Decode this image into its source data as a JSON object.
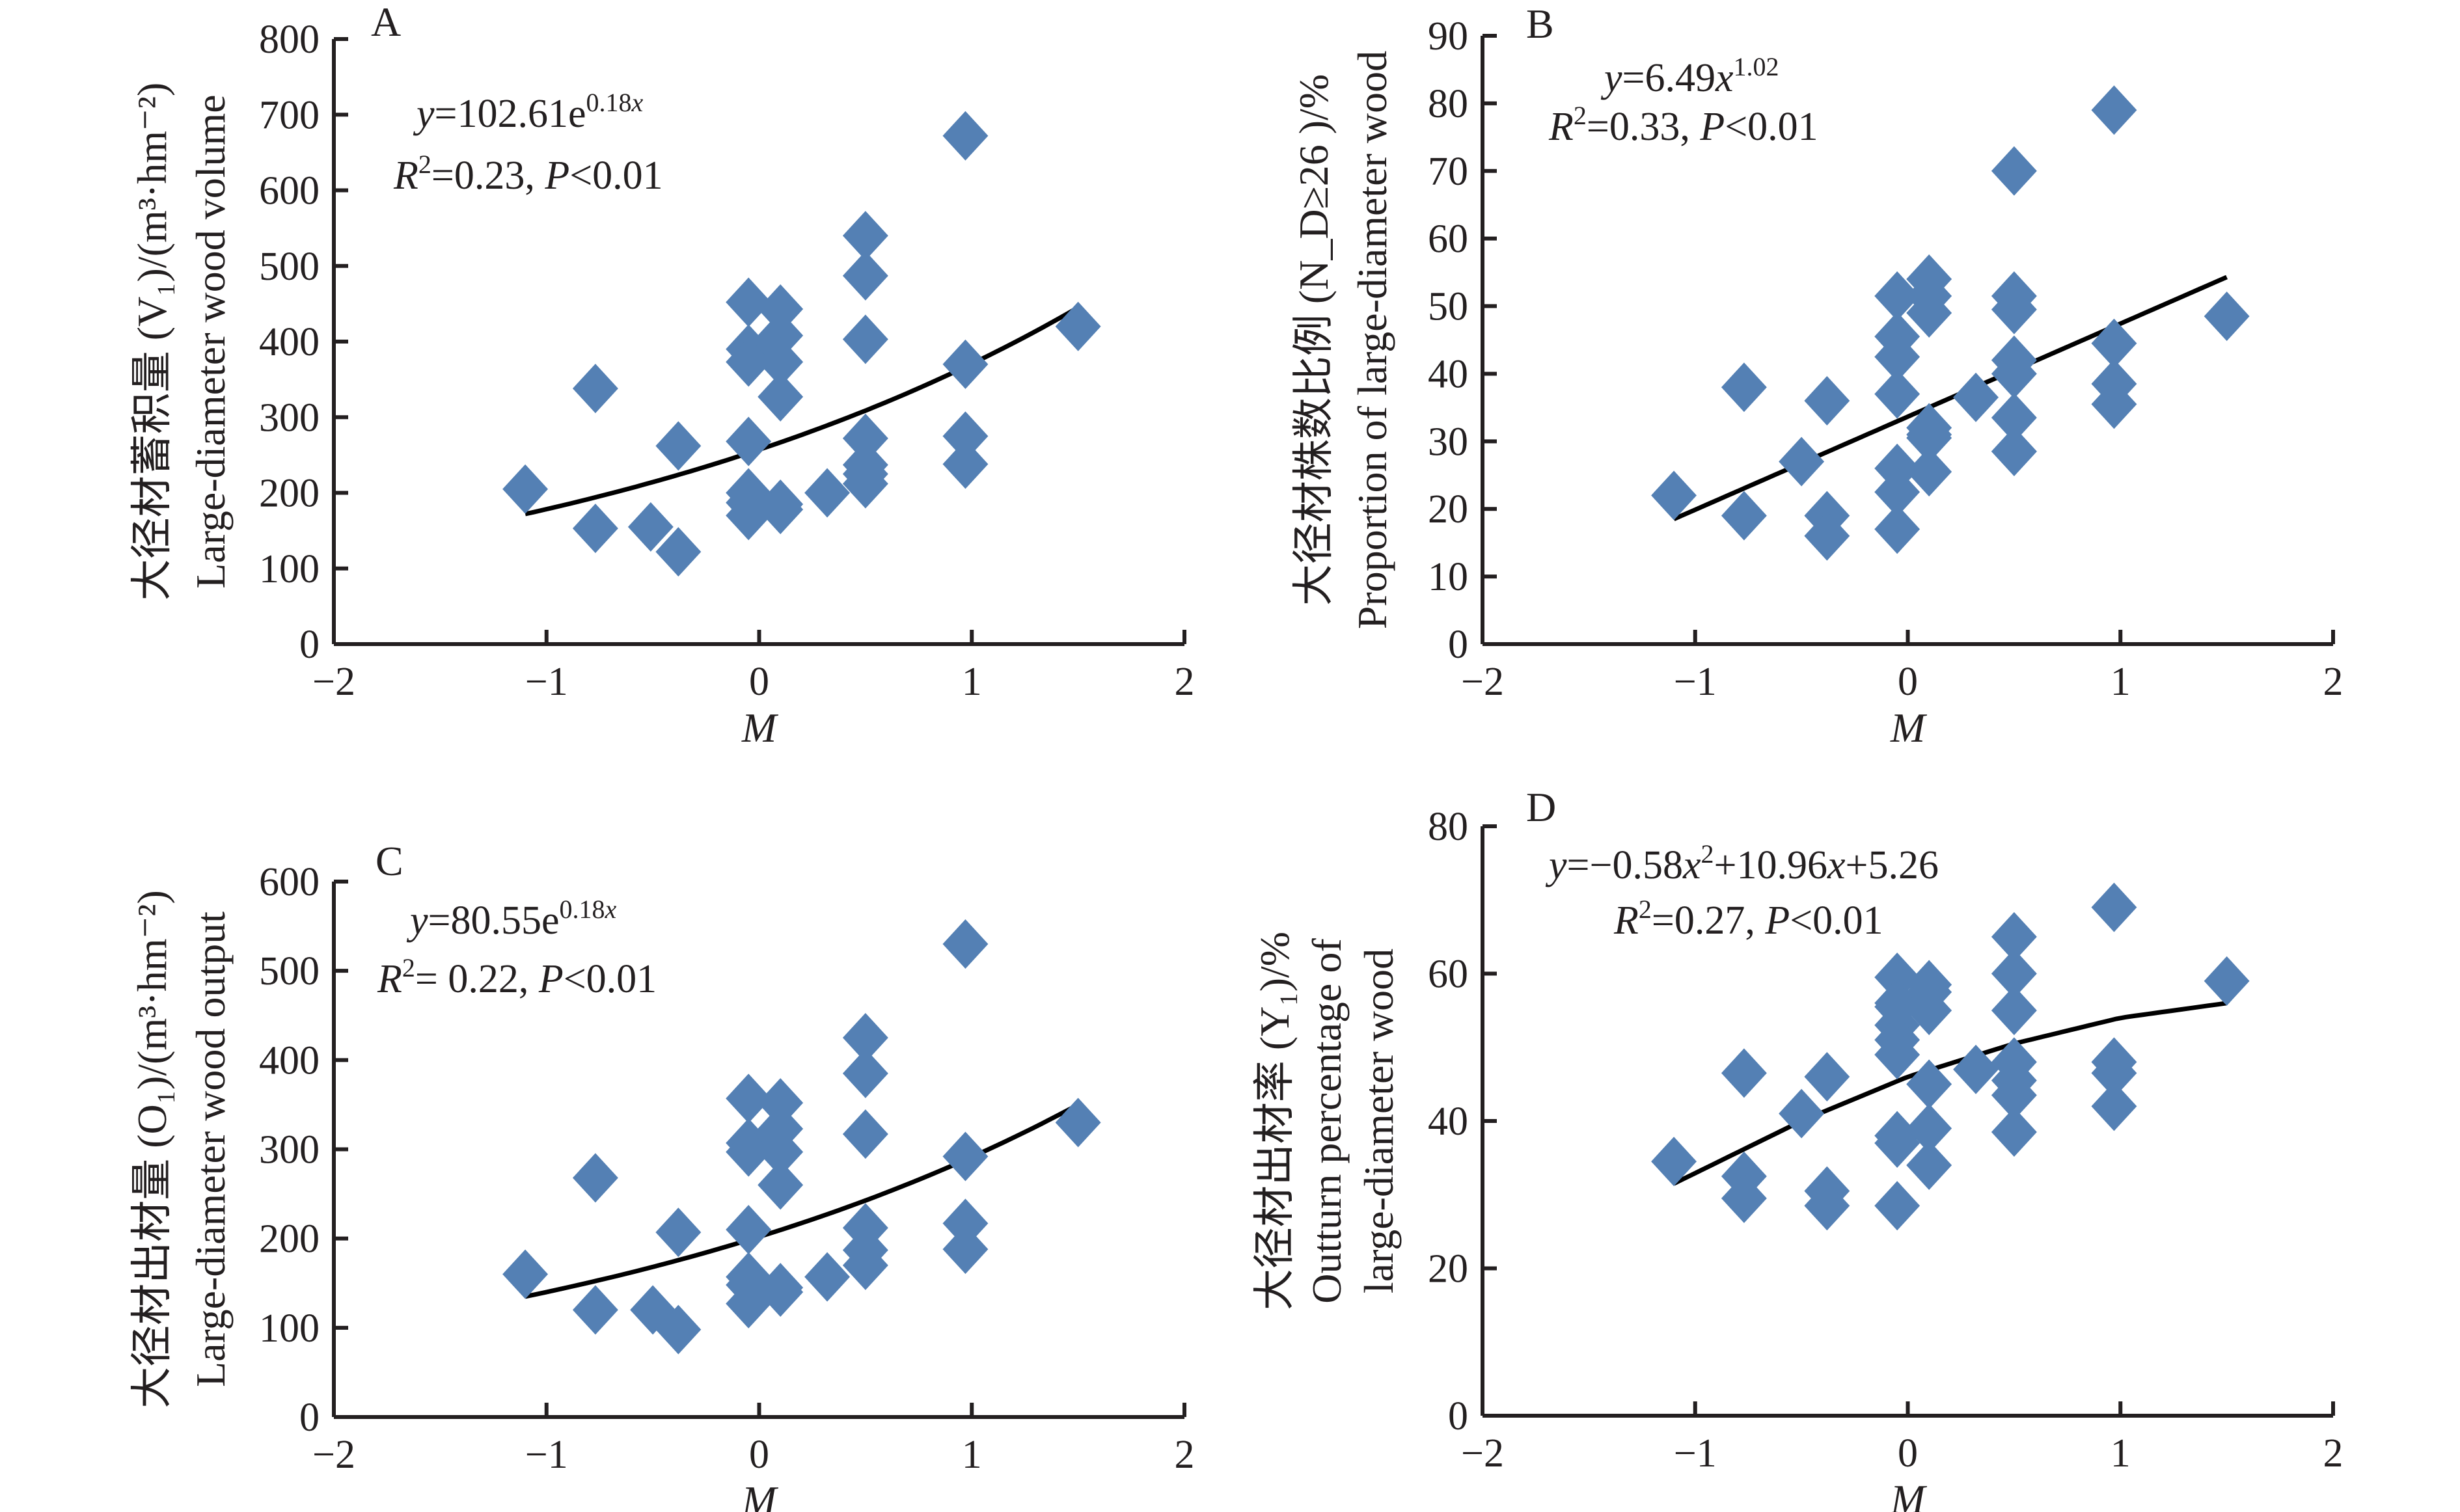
{
  "figure": {
    "marker_color": "#5480b4",
    "line_color": "#000000"
  },
  "chart_data": [
    {
      "id": "A",
      "type": "scatter",
      "panel_label": "A",
      "title": "",
      "xlabel": "M",
      "ylabel_cn": "大径材蓄积量 (V1)/(m³·hm⁻²)",
      "ylabel_en": "Large-diameter wood volume",
      "ylabel_lines": [
        "大径材蓄积量 (V₁)/(m³·hm⁻²)",
        "Large-diameter wood volume"
      ],
      "xlim": [
        -2,
        2
      ],
      "ylim": [
        0,
        800
      ],
      "xticks": [
        -2,
        -1,
        0,
        1,
        2
      ],
      "xtick_labels": [
        "−2",
        "−1",
        "0",
        "1",
        "2"
      ],
      "yticks": [
        0,
        100,
        200,
        300,
        400,
        500,
        600,
        700,
        800
      ],
      "ytick_labels": [
        "0",
        "100",
        "200",
        "300",
        "400",
        "500",
        "600",
        "700",
        "800"
      ],
      "grid": false,
      "equation": "y=102.61e^(0.18x)",
      "equation_parts": {
        "lhs": "y",
        "body": "=102.61e",
        "sup": "0.18x"
      },
      "stats": "R²=0.23, P<0.01",
      "stats_parts": {
        "r": "R",
        "r_sup": "2",
        "r_val": "=0.23, ",
        "p": "P",
        "p_val": "<0.01"
      },
      "fit": {
        "model": "exponential",
        "a": 102.61,
        "b": 0.18,
        "x_range": [
          -1.1,
          1.5
        ]
      },
      "points": {
        "x": [
          -1.1,
          -0.77,
          -0.77,
          -0.51,
          -0.38,
          -0.38,
          -0.05,
          -0.05,
          -0.05,
          -0.05,
          -0.05,
          -0.05,
          -0.05,
          0.1,
          0.1,
          0.1,
          0.1,
          0.1,
          0.1,
          0.32,
          0.5,
          0.5,
          0.5,
          0.5,
          0.5,
          0.5,
          0.5,
          0.97,
          0.97,
          0.97,
          0.97,
          1.5
        ],
        "y": [
          205,
          338,
          153,
          155,
          262,
          122,
          452,
          390,
          373,
          268,
          200,
          187,
          170,
          443,
          408,
          373,
          327,
          185,
          178,
          200,
          540,
          487,
          403,
          272,
          237,
          225,
          212,
          672,
          370,
          275,
          238,
          420
        ]
      }
    },
    {
      "id": "B",
      "type": "scatter",
      "panel_label": "B",
      "title": "",
      "xlabel": "M",
      "ylabel_lines": [
        "大径材株数比例 (N_D≥26 )/%",
        "Proportion of large-diameter wood"
      ],
      "xlim": [
        -2,
        2
      ],
      "ylim": [
        0,
        90
      ],
      "xticks": [
        -2,
        -1,
        0,
        1,
        2
      ],
      "xtick_labels": [
        "−2",
        "−1",
        "0",
        "1",
        "2"
      ],
      "yticks": [
        0,
        10,
        20,
        30,
        40,
        50,
        60,
        70,
        80,
        90
      ],
      "ytick_labels": [
        "0",
        "10",
        "20",
        "30",
        "40",
        "50",
        "60",
        "70",
        "80",
        "90"
      ],
      "grid": false,
      "equation": "y=6.49x^1.02",
      "equation_parts": {
        "lhs": "y",
        "body": "=6.49",
        "var": "x",
        "sup": "1.02"
      },
      "stats": "R²=0.33, P<0.01",
      "stats_parts": {
        "r": "R",
        "r_sup": "2",
        "r_val": "=0.33, ",
        "p": "P",
        "p_val": "<0.01"
      },
      "fit": {
        "model": "linear_approx",
        "x_range": [
          -1.1,
          1.5
        ],
        "y_at_range": [
          18.5,
          54.3
        ]
      },
      "points": {
        "x": [
          -1.1,
          -0.77,
          -0.77,
          -0.5,
          -0.38,
          -0.38,
          -0.38,
          -0.05,
          -0.05,
          -0.05,
          -0.05,
          -0.05,
          -0.05,
          -0.05,
          0.1,
          0.1,
          0.1,
          0.1,
          0.1,
          0.1,
          0.1,
          0.32,
          0.5,
          0.5,
          0.5,
          0.5,
          0.5,
          0.5,
          0.5,
          0.5,
          0.97,
          0.97,
          0.97,
          0.97,
          1.5
        ],
        "y": [
          22,
          38,
          19,
          27,
          36,
          19,
          16,
          51.5,
          45.5,
          42.5,
          37,
          26,
          22.5,
          17,
          54,
          51.5,
          49,
          32,
          30.5,
          25.5,
          31,
          36.5,
          70,
          51.5,
          49.5,
          42,
          40,
          33.5,
          28.5,
          28.5,
          79,
          44.5,
          38.5,
          35.5,
          48.5
        ]
      }
    },
    {
      "id": "C",
      "type": "scatter",
      "panel_label": "C",
      "title": "",
      "xlabel": "M",
      "ylabel_lines": [
        "大径材出材量 (O₁)/(m³·hm⁻²)",
        "Large-diameter wood output"
      ],
      "xlim": [
        -2,
        2
      ],
      "ylim": [
        0,
        600
      ],
      "xticks": [
        -2,
        -1,
        0,
        1,
        2
      ],
      "xtick_labels": [
        "−2",
        "−1",
        "0",
        "1",
        "2"
      ],
      "yticks": [
        0,
        100,
        200,
        300,
        400,
        500,
        600
      ],
      "ytick_labels": [
        "0",
        "100",
        "200",
        "300",
        "400",
        "500",
        "600"
      ],
      "grid": false,
      "equation": "y=80.55e^(0.18x)",
      "equation_parts": {
        "lhs": "y",
        "body": "=80.55e",
        "sup": "0.18x"
      },
      "stats": "R²= 0.22, P<0.01",
      "stats_parts": {
        "r": "R",
        "r_sup": "2",
        "r_val": "= 0.22, ",
        "p": "P",
        "p_val": "<0.01"
      },
      "fit": {
        "model": "exponential_scaled",
        "x_range": [
          -1.1,
          1.5
        ],
        "y_at_range": [
          135,
          350
        ]
      },
      "points": {
        "x": [
          -1.1,
          -0.77,
          -0.77,
          -0.5,
          -0.38,
          -0.38,
          -0.05,
          -0.05,
          -0.05,
          -0.05,
          -0.05,
          -0.05,
          -0.05,
          0.1,
          0.1,
          0.1,
          0.1,
          0.1,
          0.1,
          0.32,
          0.5,
          0.5,
          0.5,
          0.5,
          0.5,
          0.5,
          0.97,
          0.97,
          0.97,
          0.97,
          1.5
        ],
        "y": [
          160,
          268,
          120,
          120,
          207,
          98,
          357,
          307,
          297,
          210,
          157,
          148,
          127,
          352,
          323,
          297,
          260,
          145,
          140,
          157,
          425,
          385,
          317,
          212,
          187,
          170,
          530,
          292,
          217,
          188,
          330
        ]
      }
    },
    {
      "id": "D",
      "type": "scatter",
      "panel_label": "D",
      "title": "",
      "xlabel": "M",
      "ylabel_lines": [
        "大径材出材率 (Y₁)/%",
        "Outturn percentage of",
        "large-diameter wood"
      ],
      "xlim": [
        -2,
        2
      ],
      "ylim": [
        0,
        80
      ],
      "xticks": [
        -2,
        -1,
        0,
        1,
        2
      ],
      "xtick_labels": [
        "−2",
        "−1",
        "0",
        "1",
        "2"
      ],
      "yticks": [
        0,
        20,
        40,
        60,
        80
      ],
      "ytick_labels": [
        "0",
        "20",
        "40",
        "60",
        "80"
      ],
      "grid": false,
      "equation": "y=−0.58x²+10.96x+5.26",
      "equation_parts": {
        "lhs": "y",
        "body1": "=−0.58",
        "var1": "x",
        "sup": "2",
        "body2": "+10.96",
        "var2": "x",
        "body3": "+5.26"
      },
      "stats": "R²=0.27, P<0.01",
      "stats_parts": {
        "r": "R",
        "r_sup": "2",
        "r_val": "=0.27, ",
        "p": "P",
        "p_val": "<0.01"
      },
      "fit": {
        "model": "quadratic_approx",
        "x_range": [
          -1.1,
          1.5
        ],
        "curve": [
          [
            -1.1,
            31.5
          ],
          [
            -0.5,
            40
          ],
          [
            0,
            46
          ],
          [
            0.5,
            50.5
          ],
          [
            1.0,
            54
          ],
          [
            1.5,
            56
          ]
        ]
      },
      "points": {
        "x": [
          -1.1,
          -0.77,
          -0.77,
          -0.77,
          -0.5,
          -0.38,
          -0.38,
          -0.38,
          -0.05,
          -0.05,
          -0.05,
          -0.05,
          -0.05,
          -0.05,
          -0.05,
          -0.05,
          -0.05,
          0.1,
          0.1,
          0.1,
          0.1,
          0.1,
          0.1,
          0.32,
          0.5,
          0.5,
          0.5,
          0.5,
          0.5,
          0.5,
          0.5,
          0.97,
          0.97,
          0.97,
          0.97,
          1.5
        ],
        "y": [
          34.5,
          46.5,
          32.5,
          29.5,
          41,
          46,
          30.5,
          28.5,
          59.5,
          56,
          53,
          51,
          49,
          38,
          37,
          28.5,
          55.5,
          58.5,
          57.5,
          55,
          45,
          39,
          34,
          47,
          65,
          60,
          55,
          48,
          45.5,
          43.5,
          38.5,
          69,
          48,
          46.5,
          42,
          59
        ]
      }
    }
  ]
}
